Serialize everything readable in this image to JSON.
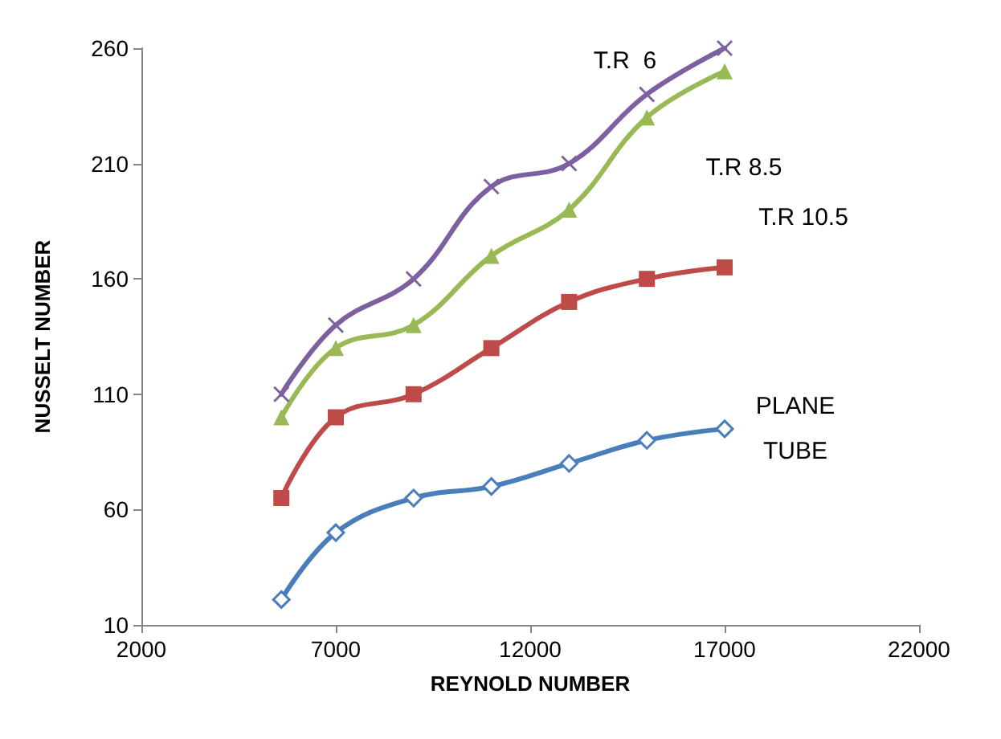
{
  "chart_data": {
    "type": "line",
    "xlabel": "REYNOLD NUMBER",
    "ylabel": "NUSSELT NUMBER",
    "x": [
      5600,
      7000,
      9000,
      11000,
      13000,
      15000,
      17000
    ],
    "series": [
      {
        "name": "PLANE\nTUBE",
        "color": "#4a7ebb",
        "marker": "diamond",
        "values": [
          21,
          50,
          65,
          70,
          80,
          90,
          95
        ]
      },
      {
        "name": "T.R 10.5",
        "color": "#be4b48",
        "marker": "square",
        "values": [
          65,
          100,
          110,
          130,
          150,
          160,
          165
        ]
      },
      {
        "name": "T.R 8.5",
        "color": "#98b954",
        "marker": "triangle",
        "values": [
          100,
          130,
          140,
          170,
          190,
          230,
          250
        ]
      },
      {
        "name": "T.R  6",
        "color": "#7d60a0",
        "marker": "cross",
        "values": [
          110,
          140,
          160,
          200,
          210,
          240,
          260
        ]
      }
    ],
    "xlim": [
      2000,
      22000
    ],
    "xticks": [
      2000,
      7000,
      12000,
      17000,
      22000
    ],
    "ylim": [
      10,
      260
    ],
    "yticks": [
      10,
      60,
      110,
      160,
      210,
      260
    ],
    "grid": false
  }
}
